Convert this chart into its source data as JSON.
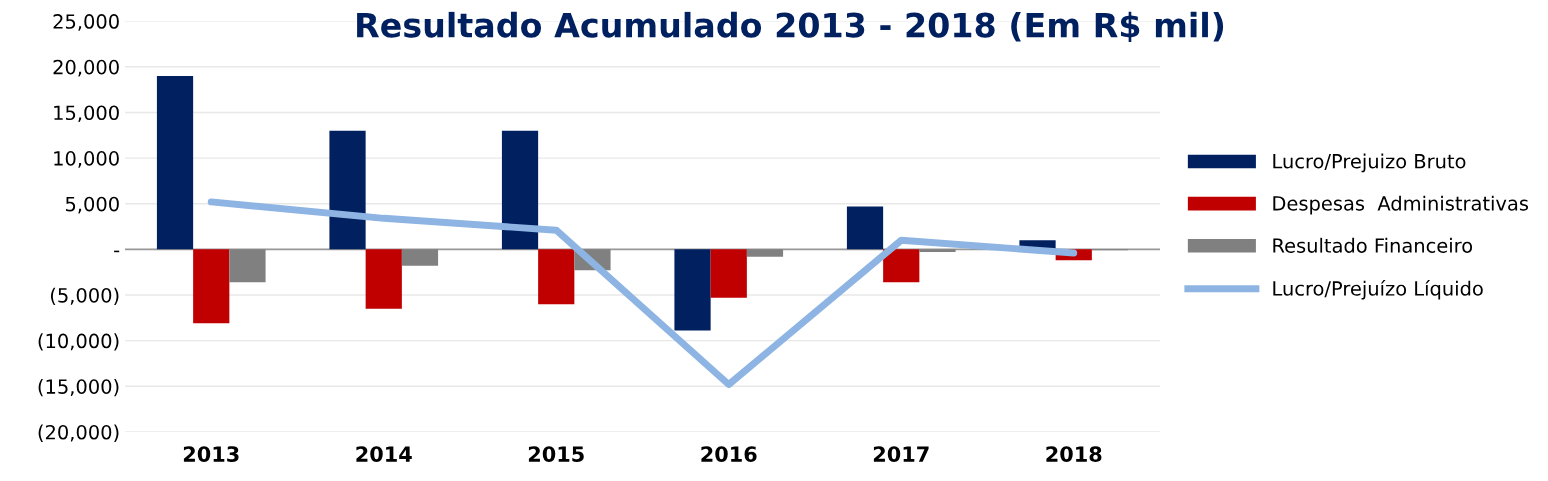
{
  "chart_data": {
    "type": "bar",
    "title": "Resultado Acumulado 2013 - 2018 (Em R$ mil)",
    "categories": [
      "2013",
      "2014",
      "2015",
      "2016",
      "2017",
      "2018"
    ],
    "series": [
      {
        "name": "Lucro/Prejuizo Bruto",
        "color": "#002060",
        "values": [
          19000,
          13000,
          13000,
          -8900,
          4700,
          1000
        ]
      },
      {
        "name": "Despesas  Administrativas",
        "color": "#c00000",
        "values": [
          -8100,
          -6500,
          -6000,
          -5300,
          -3600,
          -1200
        ]
      },
      {
        "name": "Resultado Financeiro",
        "color": "#808080",
        "values": [
          -3600,
          -1800,
          -2300,
          -800,
          -300,
          -100
        ]
      },
      {
        "name": "Lucro/Prejuízo Líquido",
        "type": "line",
        "color": "#8db4e2",
        "values": [
          5200,
          3400,
          2100,
          -14800,
          1000,
          -400
        ]
      }
    ],
    "ylim": [
      -20000,
      25000
    ],
    "yticks": [
      {
        "value": -20000,
        "label": "(20,000)"
      },
      {
        "value": -15000,
        "label": "(15,000)"
      },
      {
        "value": -10000,
        "label": "(10,000)"
      },
      {
        "value": -5000,
        "label": "(5,000)"
      },
      {
        "value": 0,
        "label": "-"
      },
      {
        "value": 5000,
        "label": "5,000"
      },
      {
        "value": 10000,
        "label": "10,000"
      },
      {
        "value": 15000,
        "label": "15,000"
      },
      {
        "value": 20000,
        "label": "20,000"
      },
      {
        "value": 25000,
        "label": "25,000"
      }
    ],
    "grid": "y",
    "legend": "right"
  }
}
